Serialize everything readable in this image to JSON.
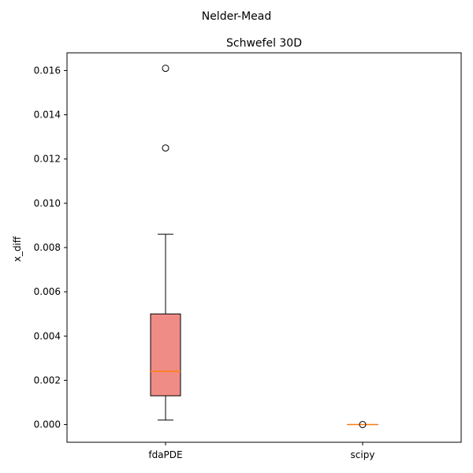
{
  "suptitle": "Nelder-Mead",
  "chart_data": {
    "type": "box",
    "title": "Schwefel 30D",
    "xlabel": "",
    "ylabel": "x_diff",
    "ylim": [
      -0.0008,
      0.0168
    ],
    "yticks": [
      0.0,
      0.002,
      0.004,
      0.006,
      0.008,
      0.01,
      0.012,
      0.014,
      0.016
    ],
    "ytick_labels": [
      "0.000",
      "0.002",
      "0.004",
      "0.006",
      "0.008",
      "0.010",
      "0.012",
      "0.014",
      "0.016"
    ],
    "categories": [
      "fdaPDE",
      "scipy"
    ],
    "grid": false,
    "boxes": [
      {
        "category": "fdaPDE",
        "whisker_low": 0.0002,
        "q1": 0.0013,
        "median": 0.0024,
        "q3": 0.005,
        "whisker_high": 0.0086,
        "fliers": [
          0.0125,
          0.0161
        ],
        "fill": "#f08c86"
      },
      {
        "category": "scipy",
        "whisker_low": 0.0,
        "q1": 0.0,
        "median": 0.0,
        "q3": 0.0,
        "whisker_high": 0.0,
        "fliers": [
          0.0
        ],
        "fill": "#f08c86"
      }
    ],
    "colors": {
      "box_fill": "#f08c86",
      "median": "#ff7f0e",
      "edge": "#000000"
    }
  }
}
